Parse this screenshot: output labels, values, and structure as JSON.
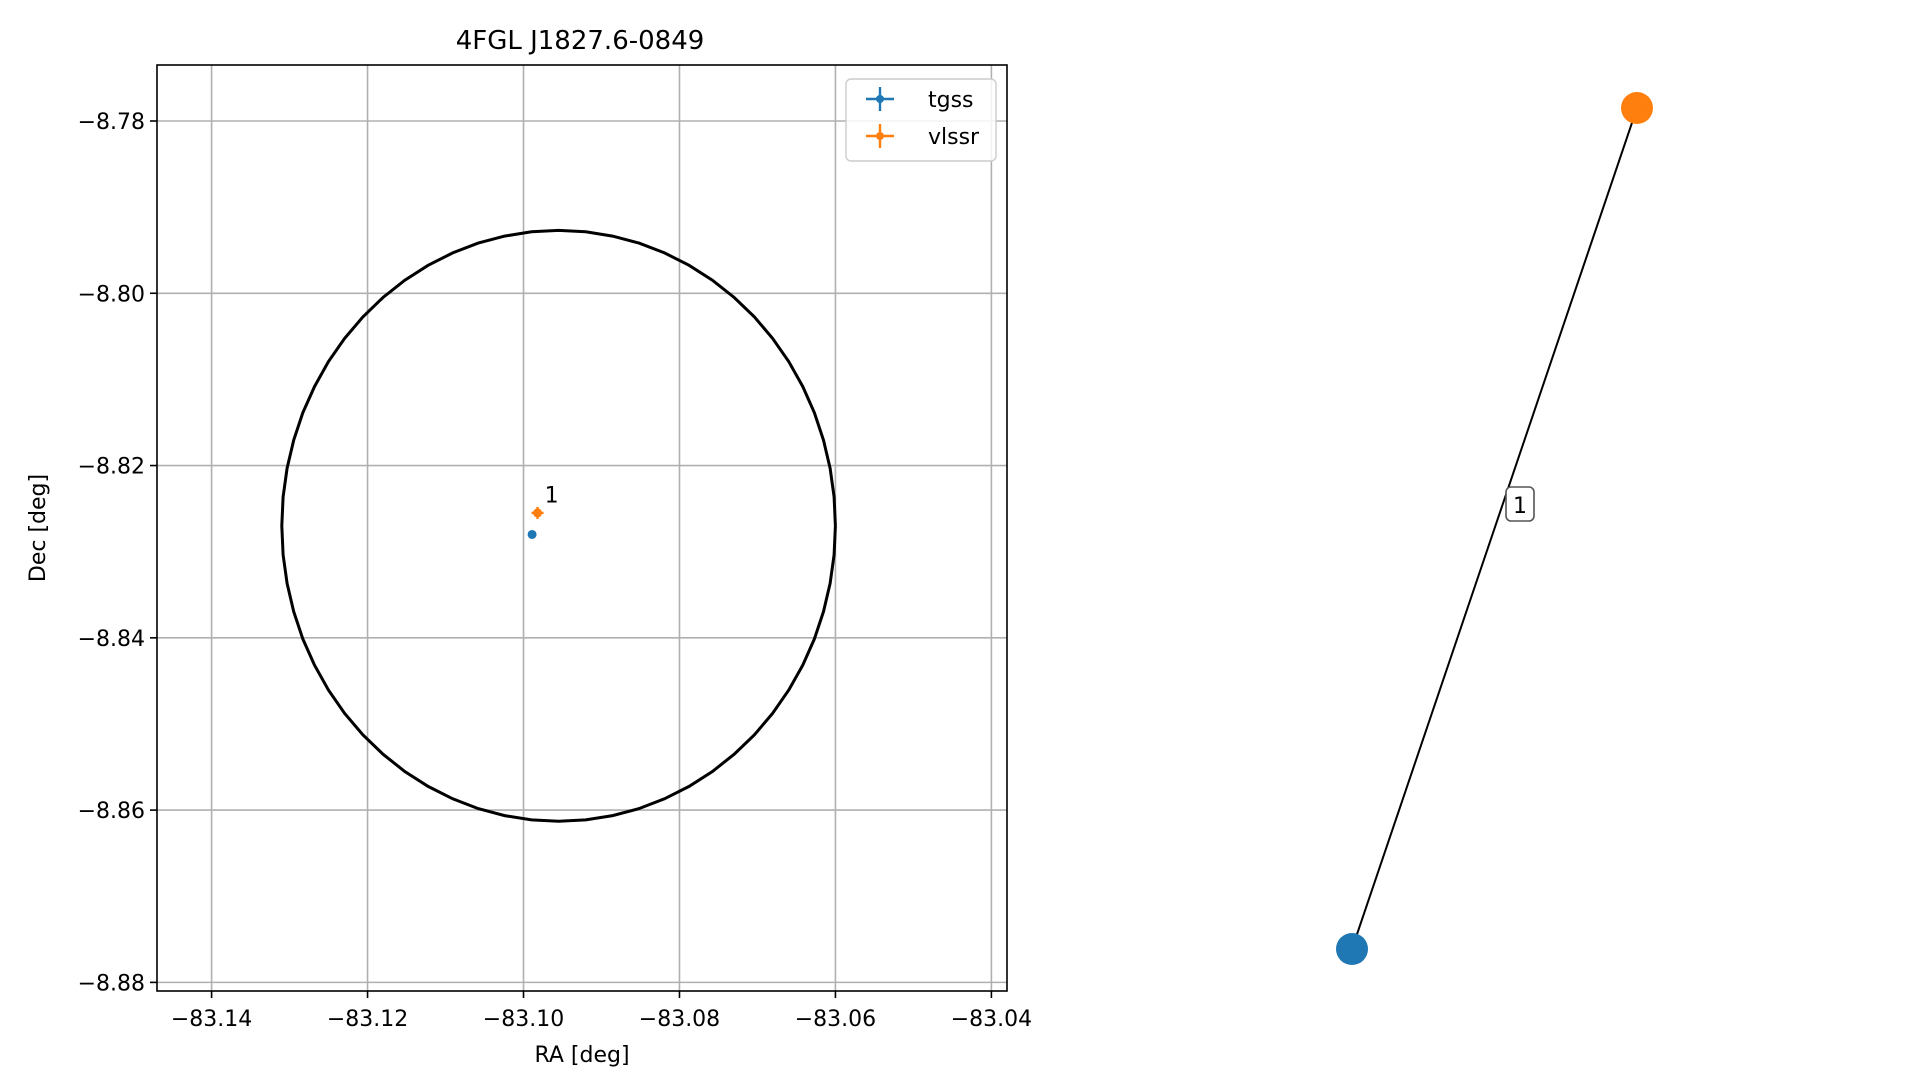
{
  "chart_data": [
    {
      "type": "scatter",
      "title": "4FGL J1827.6-0849",
      "xlabel": "RA [deg]",
      "ylabel": "Dec [deg]",
      "xlim": [
        -83.147,
        -83.038
      ],
      "ylim": [
        -8.881,
        -8.7735
      ],
      "x_ticks": [
        -83.14,
        -83.12,
        -83.1,
        -83.08,
        -83.06,
        -83.04
      ],
      "x_tick_labels": [
        "−83.14",
        "−83.12",
        "−83.10",
        "−83.08",
        "−83.06",
        "−83.04"
      ],
      "y_ticks": [
        -8.78,
        -8.8,
        -8.82,
        -8.84,
        -8.86,
        -8.88
      ],
      "y_tick_labels": [
        "−8.78",
        "−8.80",
        "−8.82",
        "−8.84",
        "−8.86",
        "−8.88"
      ],
      "grid": true,
      "legend_position": "top-right",
      "series": [
        {
          "name": "tgss",
          "color": "#1f77b4",
          "points": [
            {
              "x": -83.0989,
              "y": -8.828
            }
          ]
        },
        {
          "name": "vlssr",
          "color": "#ff7f0e",
          "points": [
            {
              "x": -83.0982,
              "y": -8.8255
            }
          ]
        }
      ],
      "annotations": [
        {
          "text": "1",
          "x": -83.0973,
          "y": -8.8243
        }
      ],
      "circle": {
        "color": "#000000",
        "center": {
          "x": -83.0955,
          "y": -8.827
        },
        "radius": {
          "x": 0.0355,
          "y": 0.0343
        }
      }
    },
    {
      "type": "graph",
      "nodes": [
        {
          "id": "tgss",
          "color": "#1f77b4"
        },
        {
          "id": "vlssr",
          "color": "#ff7f0e"
        }
      ],
      "edges": [
        {
          "source": "tgss",
          "target": "vlssr",
          "label": "1"
        }
      ]
    }
  ]
}
